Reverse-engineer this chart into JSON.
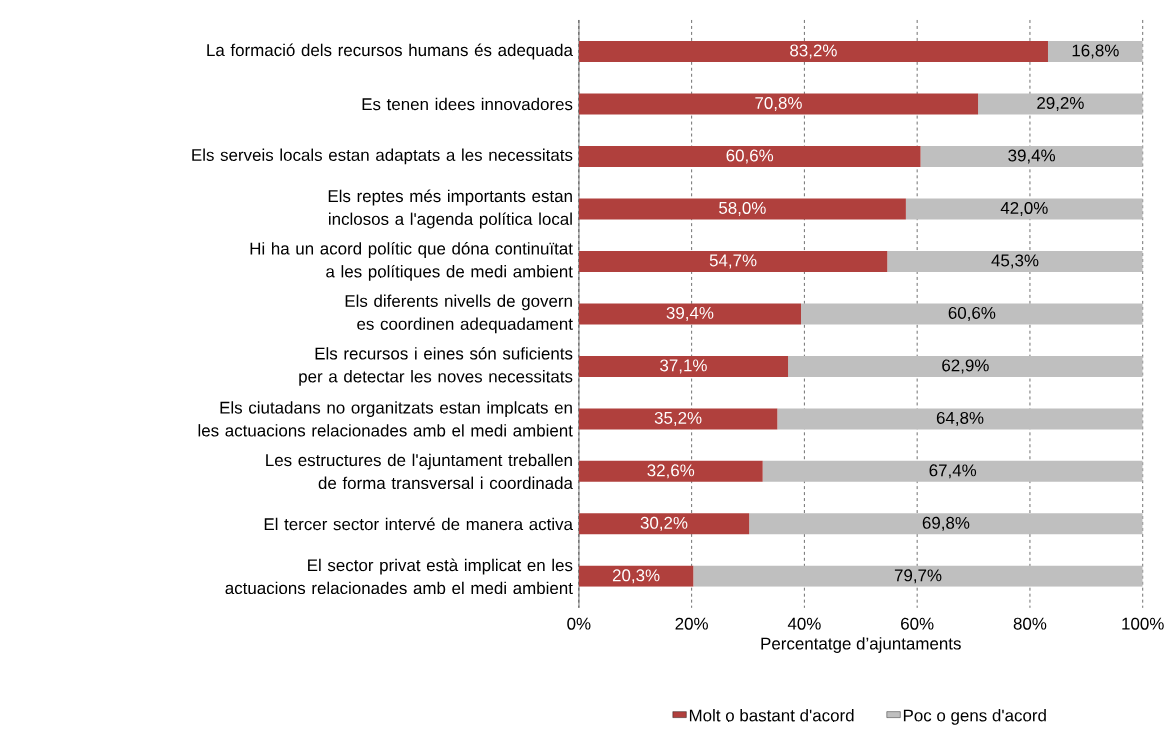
{
  "chart_data": {
    "type": "bar",
    "orientation": "horizontal",
    "stacked": true,
    "categories": [
      "La formació dels recursos humans és adequada",
      "Es tenen idees innovadores",
      "Els serveis locals estan adaptats a les necessitats",
      "Els reptes més importants estan inclosos a l'agenda política local",
      "Hi ha un acord polític que dóna continuïtat a les polítiques de medi ambient",
      "Els diferents nivells de govern es coordinen adequadament",
      "Els recursos i eines són suficients per a detectar les noves necessitats",
      "Els ciutadans no organitzats estan implcats en les actuacions relacionades amb el medi ambient",
      "Les estructures de l'ajuntament treballen de forma transversal i coordinada",
      "El tercer sector intervé de manera activa",
      "El sector privat està implicat en les actuacions relacionades amb el medi ambient"
    ],
    "series": [
      {
        "name": "Molt o bastant d'acord",
        "color": "#b0403d",
        "values": [
          83.2,
          70.8,
          60.6,
          58.0,
          54.7,
          39.4,
          37.1,
          35.2,
          32.6,
          30.2,
          20.3
        ],
        "value_labels": [
          "83,2%",
          "70,8%",
          "60,6%",
          "58,0%",
          "54,7%",
          "39,4%",
          "37,1%",
          "35,2%",
          "32,6%",
          "30,2%",
          "20,3%"
        ]
      },
      {
        "name": "Poc o gens d'acord",
        "color": "#bfbfbf",
        "values": [
          16.8,
          29.2,
          39.4,
          42.0,
          45.3,
          60.6,
          62.9,
          64.8,
          67.4,
          69.8,
          79.7
        ],
        "value_labels": [
          "16,8%",
          "29,2%",
          "39,4%",
          "42,0%",
          "45,3%",
          "60,6%",
          "62,9%",
          "64,8%",
          "67,4%",
          "69,8%",
          "79,7%"
        ]
      }
    ],
    "xlabel": "Percentatge d’ajuntaments",
    "xlim": [
      0,
      100
    ],
    "xticks": [
      {
        "value": 0,
        "label": "0%"
      },
      {
        "value": 20,
        "label": "20%"
      },
      {
        "value": 40,
        "label": "40%"
      },
      {
        "value": 60,
        "label": "60%"
      },
      {
        "value": 80,
        "label": "80%"
      },
      {
        "value": 100,
        "label": "100%"
      }
    ],
    "grid": "x",
    "legend": "bottom"
  }
}
